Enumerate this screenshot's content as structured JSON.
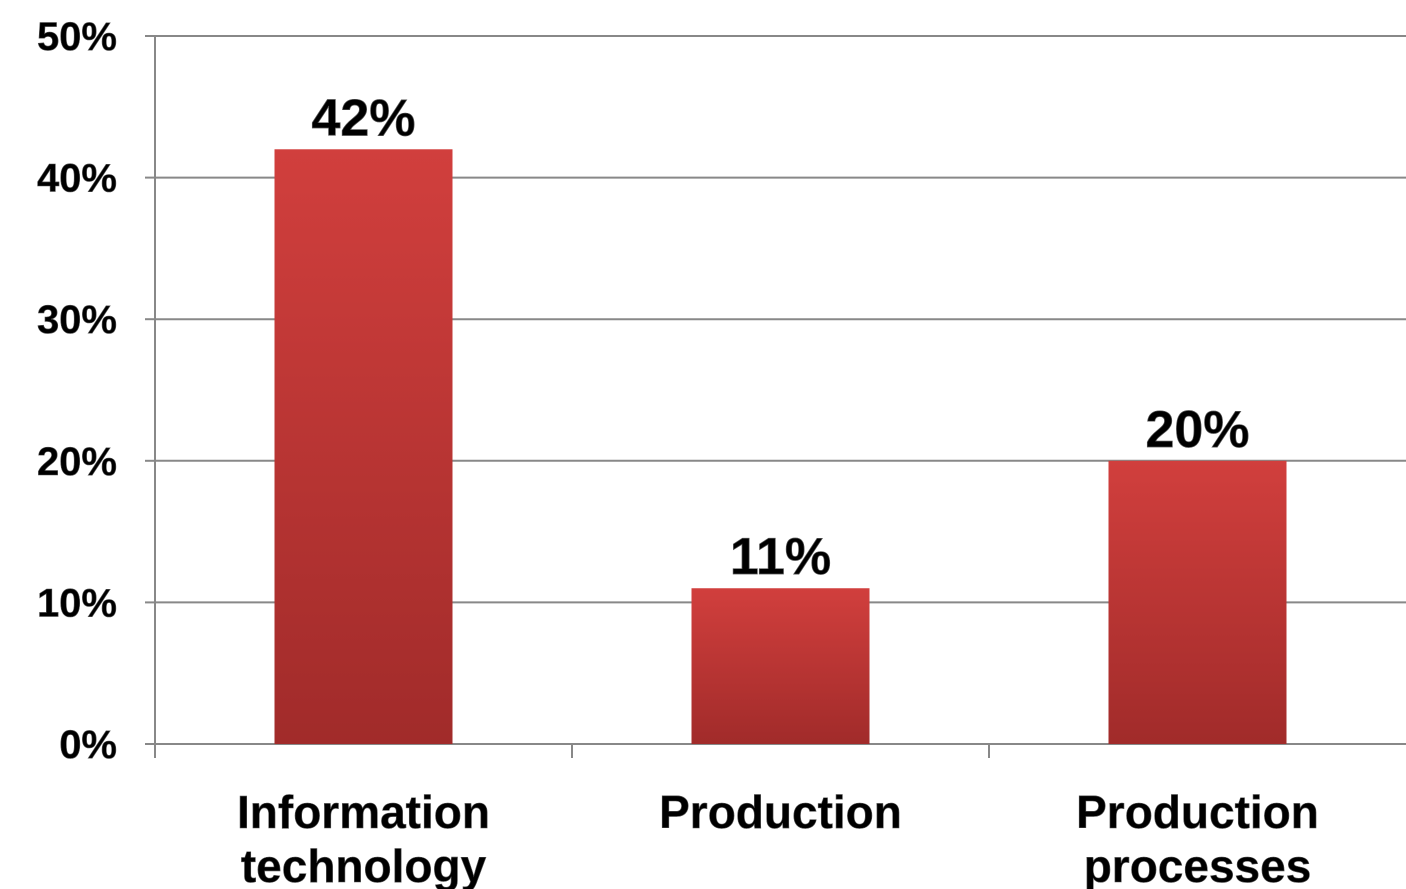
{
  "chart_data": {
    "type": "bar",
    "title": "",
    "xlabel": "",
    "ylabel": "",
    "categories": [
      [
        "Information",
        "technology"
      ],
      [
        "Production"
      ],
      [
        "Production",
        "processes"
      ]
    ],
    "values": [
      42,
      11,
      20
    ],
    "data_labels": [
      "42%",
      "11%",
      "20%"
    ],
    "ylim": [
      0,
      50
    ],
    "y_ticks": [
      0,
      10,
      20,
      30,
      40,
      50
    ],
    "y_tick_labels": [
      "0%",
      "10%",
      "20%",
      "30%",
      "40%",
      "50%"
    ],
    "grid": true,
    "legend": "none",
    "colors": {
      "bar_top": "#d13f3d",
      "bar_bottom": "#a12b2a",
      "grid": "#888888",
      "axis": "#888888"
    }
  }
}
